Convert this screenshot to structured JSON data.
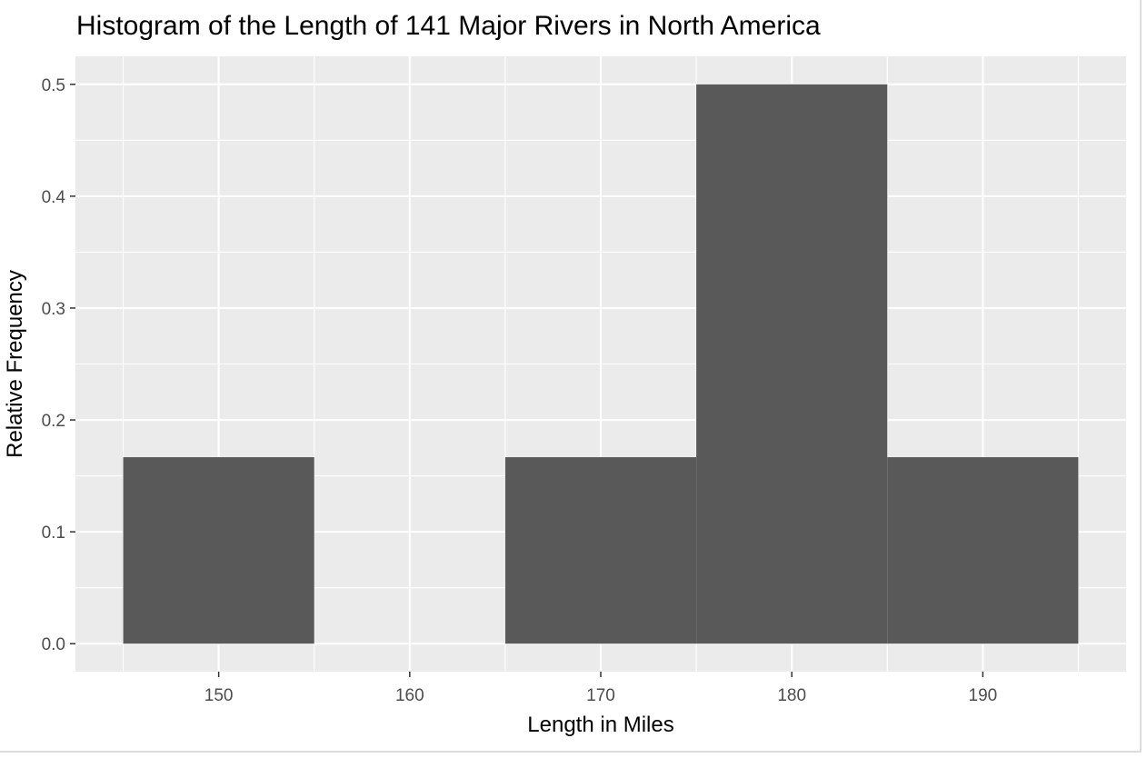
{
  "chart_data": {
    "type": "bar",
    "title": "Histogram of the Length of 141 Major Rivers in North America",
    "xlabel": "Length in Miles",
    "ylabel": "Relative Frequency",
    "xlim": [
      142.5,
      197.5
    ],
    "ylim": [
      -0.025,
      0.525
    ],
    "x_ticks": [
      150,
      160,
      170,
      180,
      190
    ],
    "y_ticks": [
      0.0,
      0.1,
      0.2,
      0.3,
      0.4,
      0.5
    ],
    "y_tick_labels": [
      "0.0",
      "0.1",
      "0.2",
      "0.3",
      "0.4",
      "0.5"
    ],
    "bins": [
      {
        "x_start": 145,
        "x_end": 155,
        "value": 0.1667
      },
      {
        "x_start": 155,
        "x_end": 165,
        "value": 0.0
      },
      {
        "x_start": 165,
        "x_end": 175,
        "value": 0.1667
      },
      {
        "x_start": 175,
        "x_end": 185,
        "value": 0.5
      },
      {
        "x_start": 185,
        "x_end": 195,
        "value": 0.1667
      }
    ],
    "bar_color": "#595959",
    "panel_background": "#ebebeb",
    "grid_color": "#ffffff",
    "grid": true,
    "legend": "none"
  }
}
